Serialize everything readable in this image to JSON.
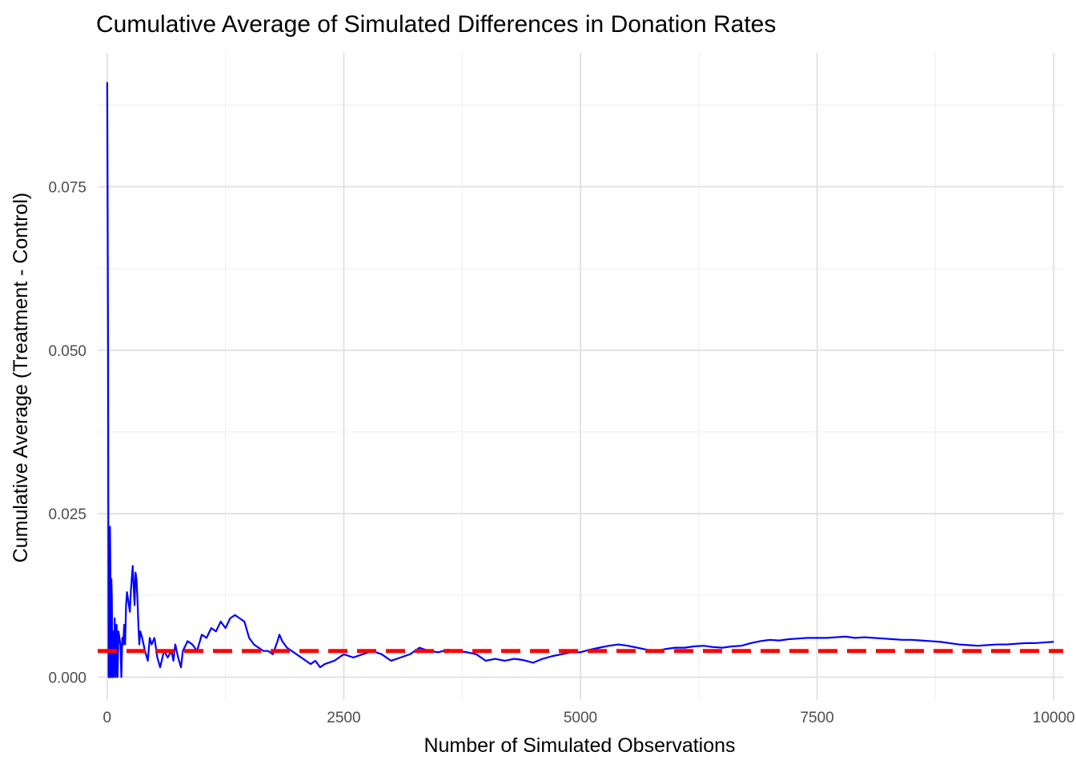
{
  "chart_data": {
    "type": "line",
    "title": "Cumulative Average of Simulated Differences in Donation Rates",
    "xlabel": "Number of Simulated Observations",
    "ylabel": "Cumulative Average (Treatment - Control)",
    "xlim": [
      -100,
      10100
    ],
    "ylim": [
      -0.0035,
      0.0955
    ],
    "x_ticks": [
      0,
      2500,
      5000,
      7500,
      10000
    ],
    "x_tick_labels": [
      "0",
      "2500",
      "5000",
      "7500",
      "10000"
    ],
    "y_ticks": [
      0.0,
      0.025,
      0.05,
      0.075
    ],
    "y_tick_labels": [
      "0.000",
      "0.025",
      "0.050",
      "0.075"
    ],
    "grid": true,
    "legend": "none",
    "series": [
      {
        "color": "#0000ff",
        "x": [
          1,
          10,
          15,
          20,
          25,
          30,
          35,
          40,
          45,
          50,
          55,
          60,
          70,
          80,
          90,
          100,
          110,
          120,
          130,
          140,
          150,
          160,
          170,
          180,
          190,
          200,
          210,
          220,
          230,
          240,
          250,
          260,
          270,
          280,
          290,
          300,
          310,
          320,
          330,
          340,
          350,
          370,
          400,
          430,
          450,
          470,
          500,
          530,
          560,
          600,
          640,
          680,
          700,
          720,
          750,
          780,
          800,
          850,
          900,
          950,
          1000,
          1050,
          1100,
          1150,
          1200,
          1250,
          1300,
          1350,
          1400,
          1450,
          1500,
          1550,
          1600,
          1650,
          1700,
          1750,
          1800,
          1820,
          1850,
          1900,
          1950,
          2000,
          2050,
          2100,
          2150,
          2200,
          2250,
          2300,
          2400,
          2500,
          2600,
          2700,
          2800,
          2900,
          3000,
          3100,
          3200,
          3300,
          3400,
          3500,
          3600,
          3700,
          3800,
          3900,
          4000,
          4100,
          4200,
          4300,
          4400,
          4500,
          4600,
          4700,
          4800,
          4900,
          5000,
          5100,
          5200,
          5300,
          5400,
          5500,
          5600,
          5700,
          5800,
          5900,
          6000,
          6100,
          6200,
          6300,
          6400,
          6500,
          6600,
          6700,
          6800,
          6900,
          7000,
          7100,
          7200,
          7300,
          7400,
          7500,
          7600,
          7700,
          7800,
          7900,
          8000,
          8100,
          8200,
          8300,
          8400,
          8500,
          8600,
          8700,
          8800,
          8900,
          9000,
          9100,
          9200,
          9300,
          9400,
          9500,
          9600,
          9700,
          9800,
          9900,
          10000
        ],
        "values": [
          0.091,
          0.05,
          0.0,
          0.02,
          0.0,
          0.023,
          0.016,
          0.0,
          0.015,
          0.012,
          0.0,
          0.007,
          0.0,
          0.009,
          0.0,
          0.008,
          0.0,
          0.007,
          0.006,
          0.005,
          0.0,
          0.006,
          0.005,
          0.008,
          0.005,
          0.011,
          0.013,
          0.012,
          0.011,
          0.01,
          0.013,
          0.015,
          0.017,
          0.014,
          0.011,
          0.016,
          0.015,
          0.012,
          0.008,
          0.005,
          0.007,
          0.006,
          0.004,
          0.0025,
          0.006,
          0.005,
          0.006,
          0.003,
          0.0015,
          0.004,
          0.003,
          0.004,
          0.0025,
          0.005,
          0.003,
          0.0015,
          0.004,
          0.0055,
          0.005,
          0.004,
          0.0065,
          0.006,
          0.0075,
          0.007,
          0.0085,
          0.0075,
          0.009,
          0.0095,
          0.009,
          0.0085,
          0.006,
          0.005,
          0.0045,
          0.004,
          0.004,
          0.0035,
          0.0055,
          0.0065,
          0.0055,
          0.0045,
          0.004,
          0.0035,
          0.003,
          0.0025,
          0.002,
          0.0025,
          0.0015,
          0.002,
          0.0025,
          0.0035,
          0.003,
          0.0035,
          0.004,
          0.0035,
          0.0025,
          0.003,
          0.0035,
          0.0045,
          0.004,
          0.0038,
          0.0042,
          0.004,
          0.0038,
          0.0035,
          0.0025,
          0.0028,
          0.0025,
          0.0028,
          0.0026,
          0.0022,
          0.0028,
          0.0032,
          0.0035,
          0.0038,
          0.0038,
          0.0042,
          0.0045,
          0.0048,
          0.005,
          0.0048,
          0.0045,
          0.0042,
          0.004,
          0.0043,
          0.0045,
          0.0045,
          0.0047,
          0.0048,
          0.0046,
          0.0045,
          0.0047,
          0.0048,
          0.0052,
          0.0055,
          0.0057,
          0.0056,
          0.0058,
          0.0059,
          0.006,
          0.006,
          0.006,
          0.0061,
          0.0062,
          0.006,
          0.0061,
          0.006,
          0.0059,
          0.0058,
          0.0057,
          0.0057,
          0.0056,
          0.0055,
          0.0054,
          0.0052,
          0.005,
          0.0049,
          0.0048,
          0.0049,
          0.005,
          0.005,
          0.0051,
          0.0052,
          0.0052,
          0.0053,
          0.0054
        ]
      }
    ],
    "reference_line": {
      "y": 0.004,
      "color": "#ff0000",
      "style": "dashed"
    }
  }
}
